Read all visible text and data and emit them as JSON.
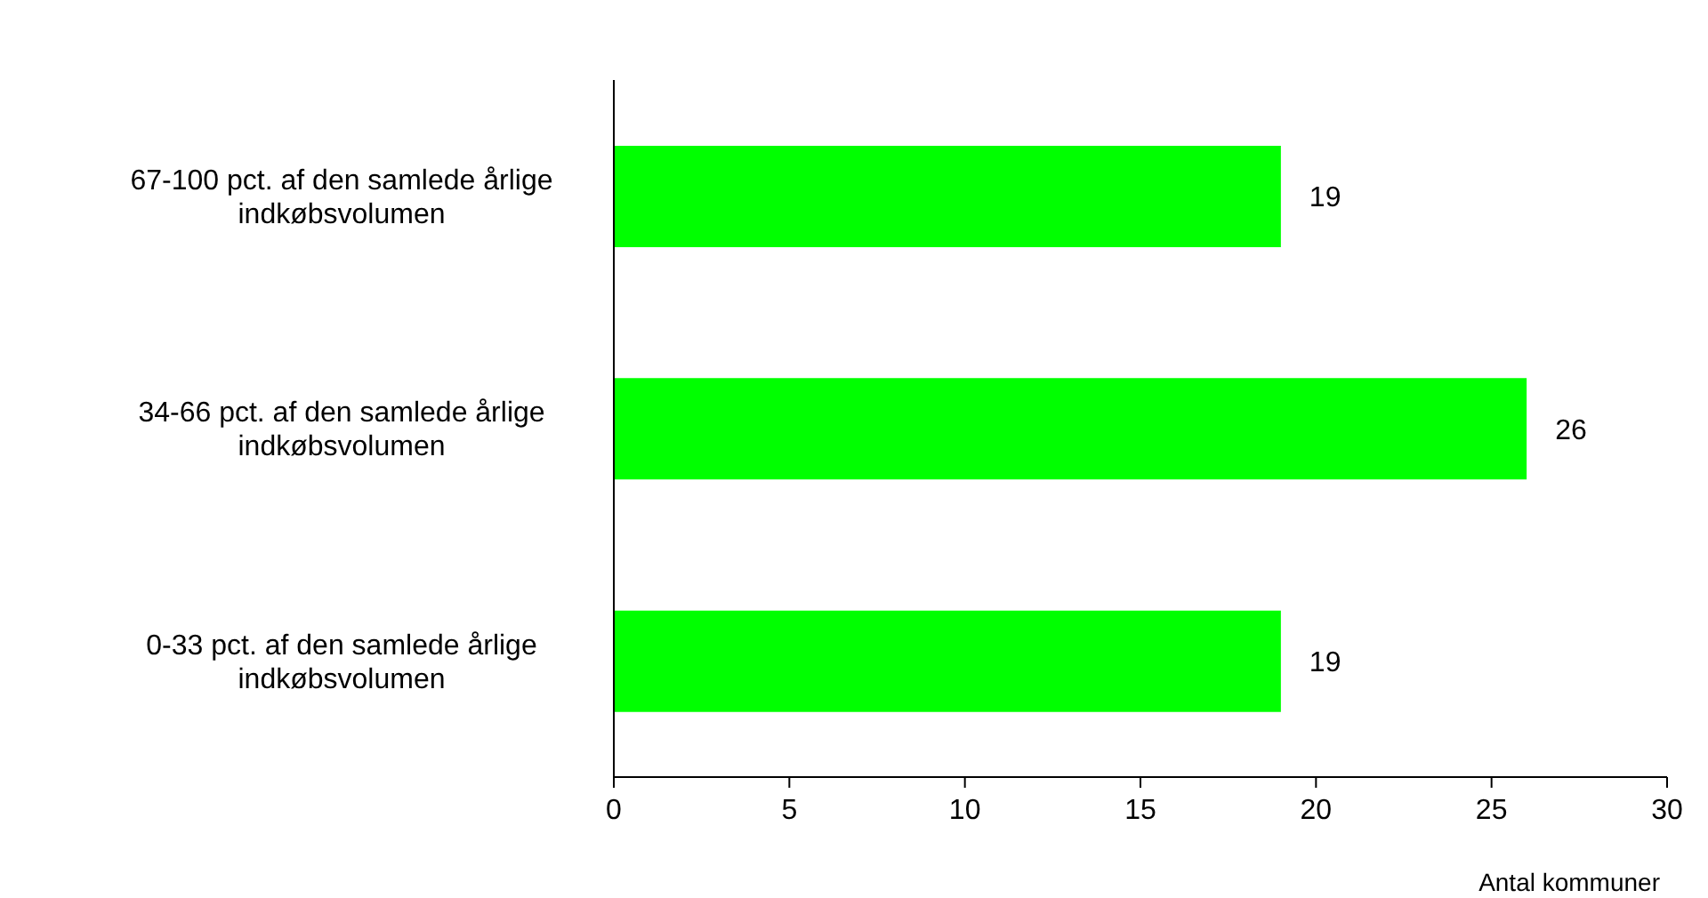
{
  "chart_data": {
    "type": "bar",
    "orientation": "horizontal",
    "categories": [
      "67-100 pct. af den samlede årlige indkøbsvolumen",
      "34-66 pct. af den samlede årlige indkøbsvolumen",
      "0-33 pct. af den samlede årlige indkøbsvolumen"
    ],
    "values": [
      19,
      26,
      19
    ],
    "color": "#00ff00",
    "xlim": [
      0,
      30
    ],
    "xticks": [
      0,
      5,
      10,
      15,
      20,
      25,
      30
    ],
    "xlabel": "Antal kommuner",
    "data_labels": true
  }
}
